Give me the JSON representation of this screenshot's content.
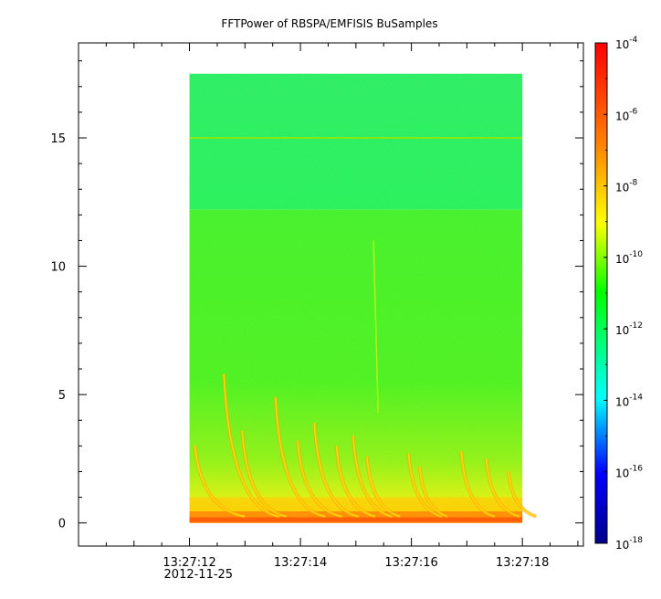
{
  "chart_data": {
    "type": "heatmap",
    "title": "FFTPower of RBSPA/EMFISIS  BuSamples",
    "xlabel": "",
    "ylabel": "",
    "x_axis": {
      "kind": "time",
      "range": [
        "13:27:10.0",
        "13:27:19.1"
      ],
      "ticks": [
        "13:27:12",
        "13:27:14",
        "13:27:16",
        "13:27:18"
      ],
      "first_tick_date": "2012-11-25"
    },
    "y_axis": {
      "range": [
        -0.9,
        18.7
      ],
      "ticks": [
        0,
        5,
        10,
        15
      ]
    },
    "data_extent": {
      "x": [
        "13:27:12.0",
        "13:27:18.0"
      ],
      "y": [
        0,
        17.5
      ]
    },
    "colorbar": {
      "scale": "log",
      "range": [
        1e-18,
        0.0001
      ],
      "ticks": [
        {
          "base": "10",
          "exp": "-4"
        },
        {
          "base": "10",
          "exp": "-6"
        },
        {
          "base": "10",
          "exp": "-8"
        },
        {
          "base": "10",
          "exp": "-10"
        },
        {
          "base": "10",
          "exp": "-12"
        },
        {
          "base": "10",
          "exp": "-14"
        },
        {
          "base": "10",
          "exp": "-16"
        },
        {
          "base": "10",
          "exp": "-18"
        }
      ],
      "colormap": [
        "#00008b",
        "#0000ff",
        "#00ffff",
        "#00ff00",
        "#ffff00",
        "#ff7f00",
        "#ff0000"
      ]
    },
    "features": {
      "background_level_low": 1e-10,
      "background_level_high": 1e-12,
      "level_change_y": 12.2,
      "narrow_line_y": 15.0,
      "chorus_region_y": [
        0,
        6
      ],
      "spike_x": "13:27:15.4"
    }
  }
}
